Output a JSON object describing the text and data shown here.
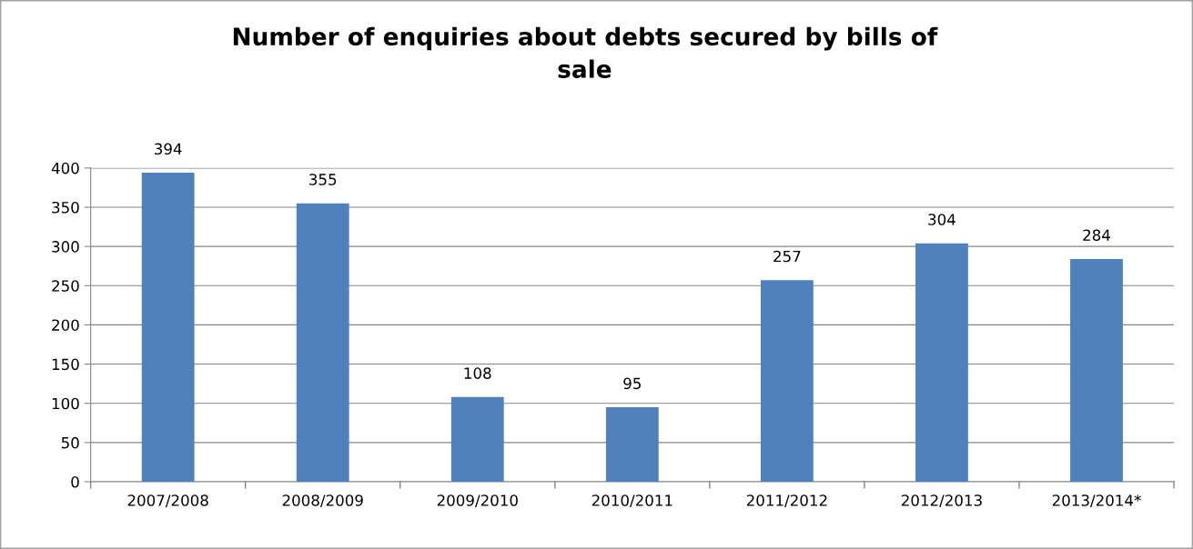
{
  "chart_data": {
    "type": "bar",
    "title": "Number of enquiries about debts secured by bills of\nsale",
    "categories": [
      "2007/2008",
      "2008/2009",
      "2009/2010",
      "2010/2011",
      "2011/2012",
      "2012/2013",
      "2013/2014*"
    ],
    "values": [
      394,
      355,
      108,
      95,
      257,
      304,
      284
    ],
    "color": "#4f81bd",
    "ylim": [
      0,
      400
    ],
    "yticks": [
      0,
      50,
      100,
      150,
      200,
      250,
      300,
      350,
      400
    ],
    "grid": "y",
    "data_labels": true
  }
}
